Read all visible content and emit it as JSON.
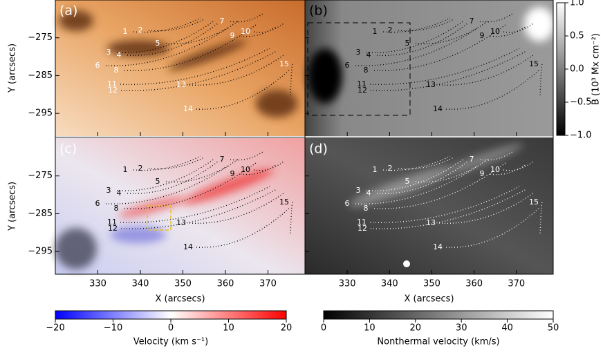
{
  "panels": [
    {
      "label": "(a)"
    },
    {
      "label": "(b)"
    },
    {
      "label": "(c)"
    },
    {
      "label": "(d)"
    }
  ],
  "loop_labels": [
    "1",
    "2",
    "3",
    "4",
    "5",
    "6",
    "7",
    "8",
    "9",
    "10",
    "11",
    "12",
    "13",
    "14",
    "15"
  ],
  "axes": {
    "x_title": "X (arcsecs)",
    "y_title": "Y (arcsecs)",
    "xlim": [
      320,
      378.7
    ],
    "xticks": [
      330,
      340,
      350,
      360,
      370
    ],
    "ylim": [
      -301,
      -265
    ],
    "yticks": [
      {
        "value": -275,
        "label": "−275"
      },
      {
        "value": -285,
        "label": "−285"
      },
      {
        "value": -295,
        "label": "−295"
      }
    ]
  },
  "colorbars": {
    "magnetic": {
      "title": "B (10³ Mx cm⁻²)",
      "lim": [
        -1,
        1
      ],
      "ticks": [
        {
          "value": 1,
          "label": "1.0"
        },
        {
          "value": 0.5,
          "label": "0.5"
        },
        {
          "value": 0,
          "label": "0.0"
        },
        {
          "value": -0.5,
          "label": "−0.5"
        },
        {
          "value": -1,
          "label": "−1.0"
        }
      ]
    },
    "velocity": {
      "title": "Velocity (km s⁻¹)",
      "lim": [
        -20,
        20
      ],
      "ticks": [
        {
          "value": -20,
          "label": "−20"
        },
        {
          "value": -10,
          "label": "−10"
        },
        0,
        10,
        20
      ]
    },
    "nonthermal": {
      "title": "Nonthermal velocity (km/s)",
      "lim": [
        0,
        50
      ],
      "ticks": [
        0,
        10,
        20,
        30,
        40,
        50
      ]
    }
  }
}
